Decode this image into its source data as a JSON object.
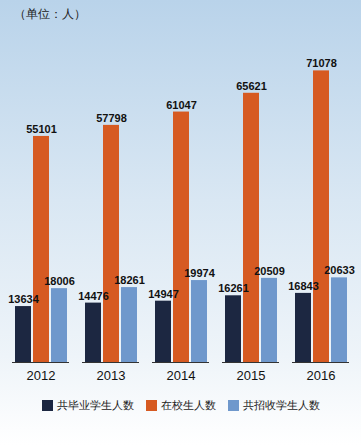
{
  "chart_data": {
    "type": "bar",
    "subtitle": "（单位：人）",
    "categories": [
      "2012",
      "2013",
      "2014",
      "2015",
      "2016"
    ],
    "series": [
      {
        "name": "共毕业学生人数",
        "color": "#1c2741",
        "values": [
          13634,
          14476,
          14947,
          16261,
          16843
        ]
      },
      {
        "name": "在校生人数",
        "color": "#d65a22",
        "values": [
          55101,
          57798,
          61047,
          65621,
          71078
        ]
      },
      {
        "name": "共招收学生人数",
        "color": "#6f98cc",
        "values": [
          18006,
          18261,
          19974,
          20509,
          20633
        ]
      }
    ],
    "ylim": [
      0,
      78000
    ],
    "data_labels": true,
    "tick_labels": "x",
    "legend": "bottom"
  }
}
